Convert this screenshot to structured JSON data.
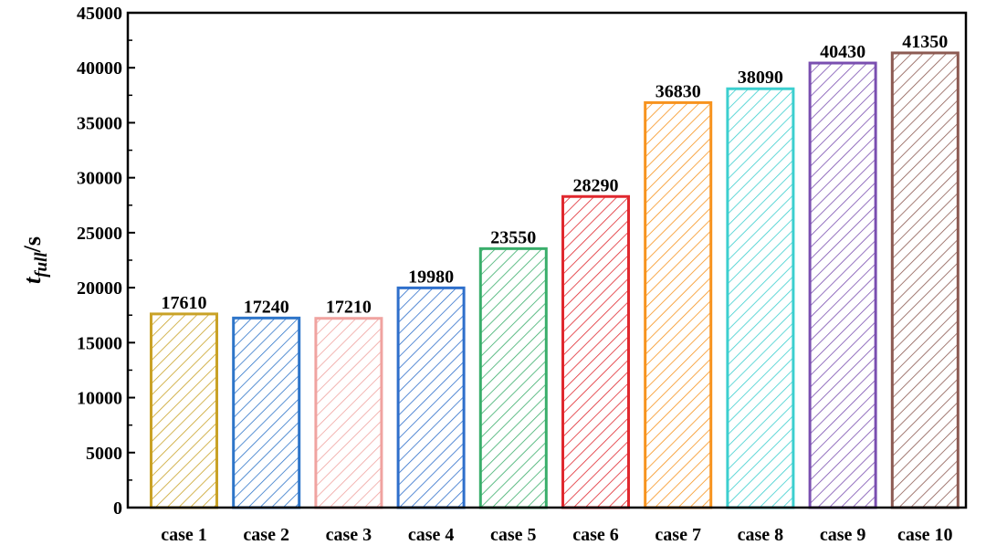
{
  "chart_data": {
    "type": "bar",
    "categories": [
      "case 1",
      "case 2",
      "case 3",
      "case 4",
      "case 5",
      "case 6",
      "case 7",
      "case 8",
      "case 9",
      "case 10"
    ],
    "values": [
      17610,
      17240,
      17210,
      19980,
      23550,
      28290,
      36830,
      38090,
      40430,
      41350
    ],
    "value_labels": [
      "17610",
      "17240",
      "17210",
      "19980",
      "23550",
      "28290",
      "36830",
      "38090",
      "40430",
      "41350"
    ],
    "colors": [
      "#C9A227",
      "#2E75C9",
      "#F0A3A0",
      "#2E6FCB",
      "#3AAE6B",
      "#E0282E",
      "#F7931E",
      "#3CCFCF",
      "#7A4FB0",
      "#8C5A52"
    ],
    "pattern": "diagonal-hatch",
    "ylabel": {
      "main": "t",
      "subscript": "full",
      "unit": "/s"
    },
    "ylim": [
      0,
      45000
    ],
    "yticks": [
      0,
      5000,
      10000,
      15000,
      20000,
      25000,
      30000,
      35000,
      40000,
      45000
    ],
    "ytick_labels": [
      "0",
      "5000",
      "10000",
      "15000",
      "20000",
      "25000",
      "30000",
      "35000",
      "40000",
      "45000"
    ],
    "grid": false,
    "legend": "none"
  }
}
